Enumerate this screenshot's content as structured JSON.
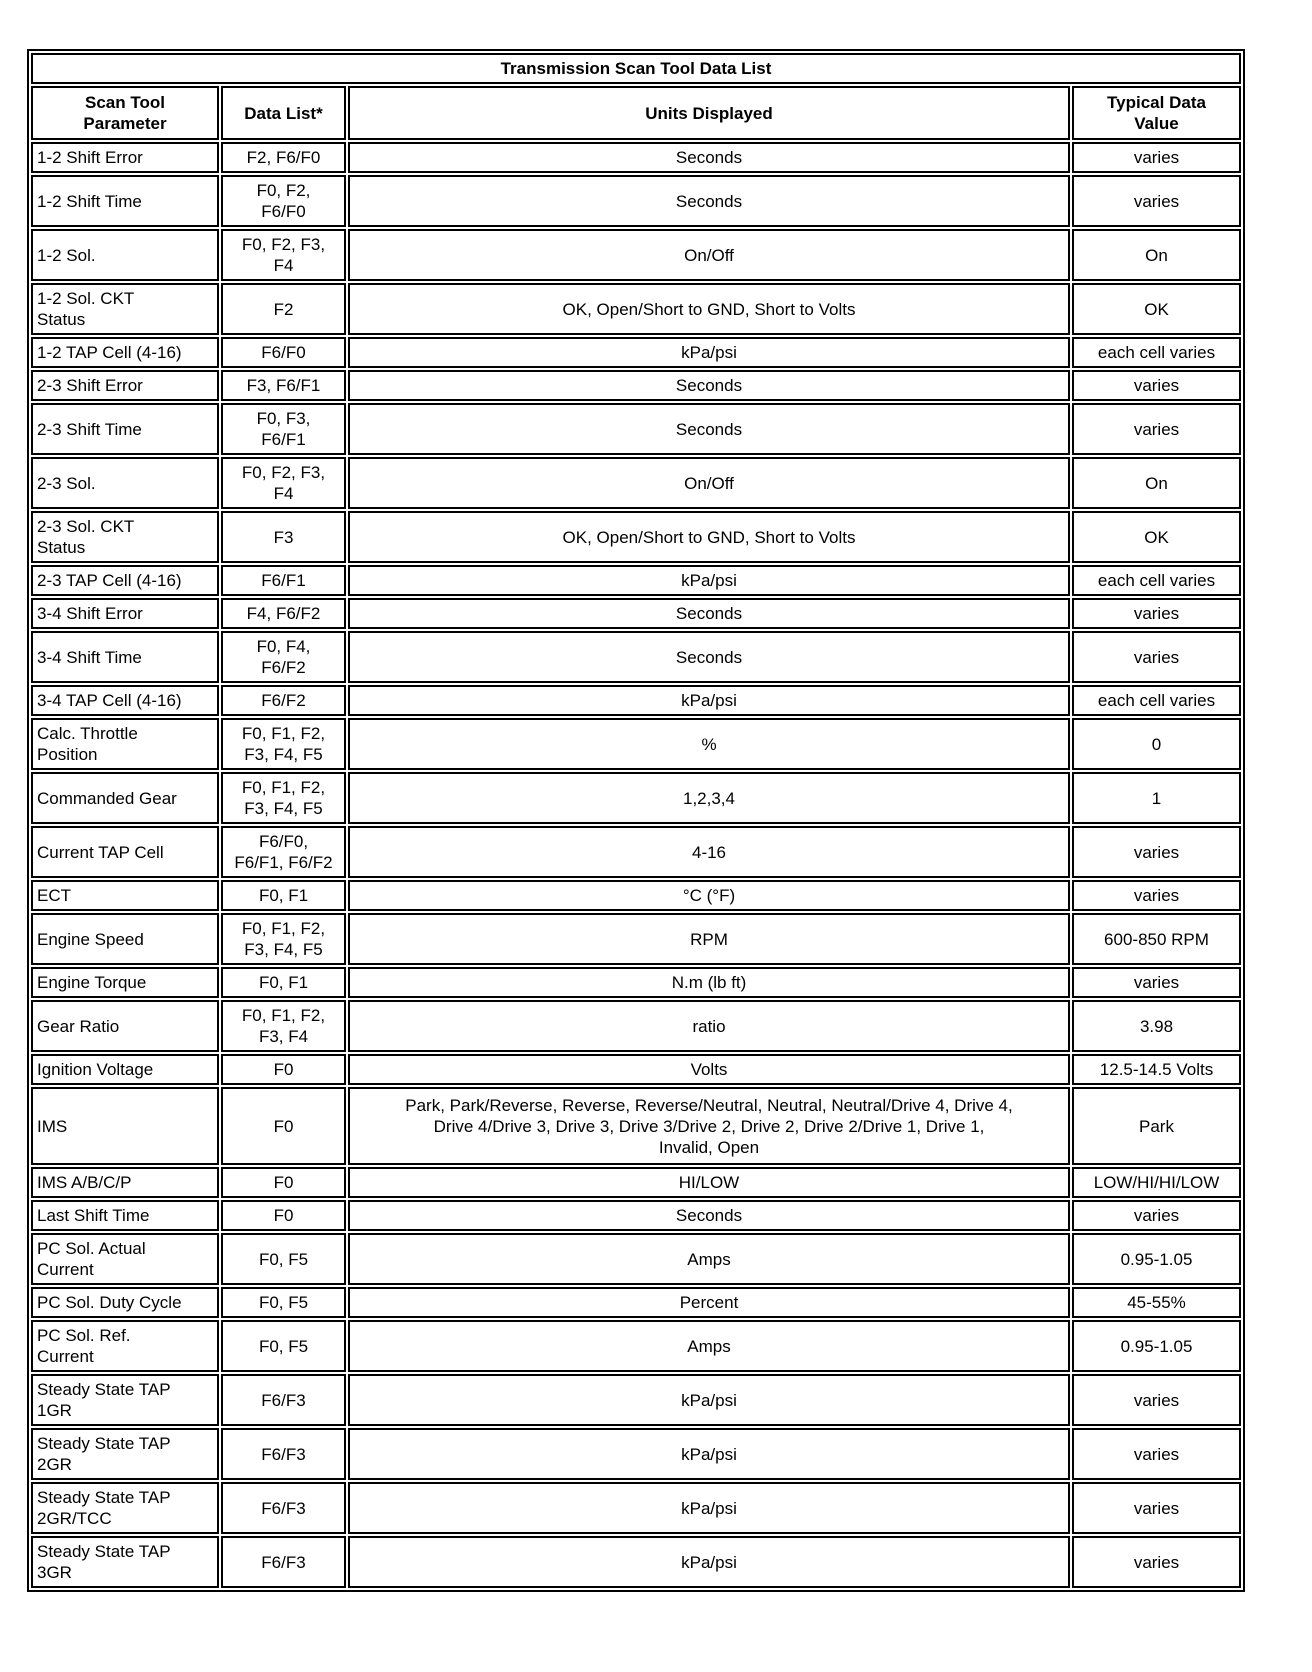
{
  "table": {
    "title": "Transmission Scan Tool Data List",
    "columns": [
      "Scan Tool\nParameter",
      "Data List*",
      "Units Displayed",
      "Typical Data\nValue"
    ],
    "rows": [
      {
        "parameter": "1-2 Shift Error",
        "data_list": "F2, F6/F0",
        "units": "Seconds",
        "typical_value": "varies"
      },
      {
        "parameter": "1-2 Shift Time",
        "data_list": "F0, F2,\nF6/F0",
        "units": "Seconds",
        "typical_value": "varies"
      },
      {
        "parameter": "1-2 Sol.",
        "data_list": "F0, F2, F3,\nF4",
        "units": "On/Off",
        "typical_value": "On"
      },
      {
        "parameter": "1-2 Sol. CKT\nStatus",
        "data_list": "F2",
        "units": "OK, Open/Short to GND, Short to Volts",
        "typical_value": "OK"
      },
      {
        "parameter": "1-2 TAP Cell (4-16)",
        "data_list": "F6/F0",
        "units": "kPa/psi",
        "typical_value": "each cell varies"
      },
      {
        "parameter": "2-3 Shift Error",
        "data_list": "F3, F6/F1",
        "units": "Seconds",
        "typical_value": "varies"
      },
      {
        "parameter": "2-3 Shift Time",
        "data_list": "F0, F3,\nF6/F1",
        "units": "Seconds",
        "typical_value": "varies"
      },
      {
        "parameter": "2-3 Sol.",
        "data_list": "F0, F2, F3,\nF4",
        "units": "On/Off",
        "typical_value": "On"
      },
      {
        "parameter": "2-3 Sol. CKT\nStatus",
        "data_list": "F3",
        "units": "OK, Open/Short to GND, Short to Volts",
        "typical_value": "OK"
      },
      {
        "parameter": "2-3 TAP Cell (4-16)",
        "data_list": "F6/F1",
        "units": "kPa/psi",
        "typical_value": "each cell varies"
      },
      {
        "parameter": "3-4 Shift Error",
        "data_list": "F4, F6/F2",
        "units": "Seconds",
        "typical_value": "varies"
      },
      {
        "parameter": "3-4 Shift Time",
        "data_list": "F0, F4,\nF6/F2",
        "units": "Seconds",
        "typical_value": "varies"
      },
      {
        "parameter": "3-4 TAP Cell (4-16)",
        "data_list": "F6/F2",
        "units": "kPa/psi",
        "typical_value": "each cell varies"
      },
      {
        "parameter": "Calc. Throttle\nPosition",
        "data_list": "F0, F1, F2,\nF3, F4, F5",
        "units": "%",
        "typical_value": "0"
      },
      {
        "parameter": "Commanded Gear",
        "data_list": "F0, F1, F2,\nF3, F4, F5",
        "units": "1,2,3,4",
        "typical_value": "1"
      },
      {
        "parameter": "Current TAP Cell",
        "data_list": "F6/F0,\nF6/F1, F6/F2",
        "units": "4-16",
        "typical_value": "varies"
      },
      {
        "parameter": "ECT",
        "data_list": "F0, F1",
        "units": "°C (°F)",
        "typical_value": "varies"
      },
      {
        "parameter": "Engine Speed",
        "data_list": "F0, F1, F2,\nF3, F4, F5",
        "units": "RPM",
        "typical_value": "600-850 RPM"
      },
      {
        "parameter": "Engine Torque",
        "data_list": "F0, F1",
        "units": "N.m (lb ft)",
        "typical_value": "varies"
      },
      {
        "parameter": "Gear Ratio",
        "data_list": "F0, F1, F2,\nF3, F4",
        "units": "ratio",
        "typical_value": "3.98"
      },
      {
        "parameter": "Ignition Voltage",
        "data_list": "F0",
        "units": "Volts",
        "typical_value": "12.5-14.5 Volts"
      },
      {
        "parameter": "IMS",
        "data_list": "F0",
        "units": "Park, Park/Reverse, Reverse, Reverse/Neutral, Neutral, Neutral/Drive 4, Drive 4,\nDrive 4/Drive 3, Drive 3, Drive 3/Drive 2, Drive 2, Drive 2/Drive 1, Drive 1,\nInvalid, Open",
        "typical_value": "Park"
      },
      {
        "parameter": "IMS A/B/C/P",
        "data_list": "F0",
        "units": "HI/LOW",
        "typical_value": "LOW/HI/HI/LOW"
      },
      {
        "parameter": "Last Shift Time",
        "data_list": "F0",
        "units": "Seconds",
        "typical_value": "varies"
      },
      {
        "parameter": "PC Sol. Actual\nCurrent",
        "data_list": "F0, F5",
        "units": "Amps",
        "typical_value": "0.95-1.05"
      },
      {
        "parameter": "PC Sol. Duty Cycle",
        "data_list": "F0, F5",
        "units": "Percent",
        "typical_value": "45-55%"
      },
      {
        "parameter": "PC Sol. Ref.\nCurrent",
        "data_list": "F0, F5",
        "units": "Amps",
        "typical_value": "0.95-1.05"
      },
      {
        "parameter": "Steady State TAP\n1GR",
        "data_list": "F6/F3",
        "units": "kPa/psi",
        "typical_value": "varies"
      },
      {
        "parameter": "Steady State TAP\n2GR",
        "data_list": "F6/F3",
        "units": "kPa/psi",
        "typical_value": "varies"
      },
      {
        "parameter": "Steady State TAP\n2GR/TCC",
        "data_list": "F6/F3",
        "units": "kPa/psi",
        "typical_value": "varies"
      },
      {
        "parameter": "Steady State TAP\n3GR",
        "data_list": "F6/F3",
        "units": "kPa/psi",
        "typical_value": "varies"
      }
    ]
  }
}
